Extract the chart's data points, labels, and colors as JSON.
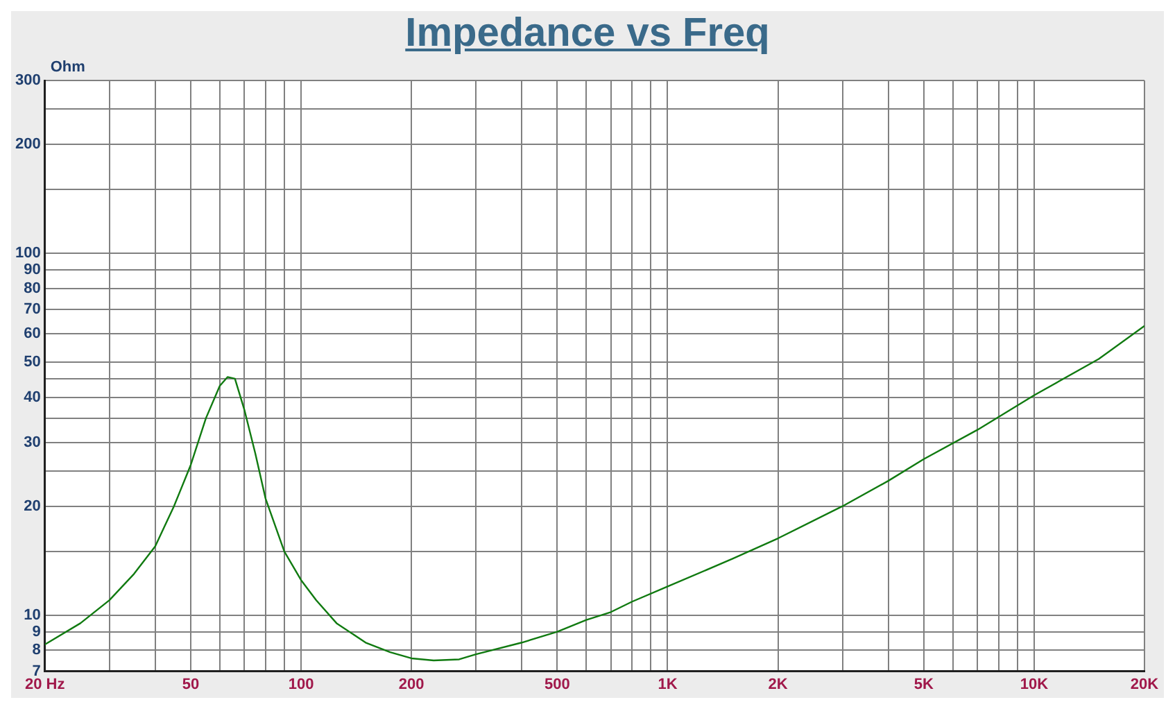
{
  "chart_data": {
    "type": "line",
    "title": "Impedance vs Freq",
    "ylabel": "Ohm",
    "log": "xy",
    "grid": true,
    "x": [
      20,
      25,
      30,
      35,
      40,
      45,
      50,
      55,
      60,
      63,
      66,
      70,
      75,
      80,
      90,
      100,
      110,
      125,
      150,
      175,
      200,
      230,
      270,
      300,
      400,
      500,
      600,
      700,
      800,
      1000,
      1500,
      2000,
      3000,
      4000,
      5000,
      7000,
      10000,
      15000,
      20000
    ],
    "series": [
      {
        "color": "#107a10",
        "values": [
          8.3,
          9.5,
          11,
          13,
          15.5,
          20,
          26,
          35,
          43,
          45.5,
          45,
          37,
          28,
          21,
          15,
          12.5,
          11,
          9.5,
          8.4,
          7.9,
          7.6,
          7.5,
          7.55,
          7.8,
          8.4,
          9,
          9.7,
          10.2,
          10.9,
          12,
          14.3,
          16.3,
          20,
          23.5,
          27,
          32.5,
          40.5,
          51,
          63
        ]
      }
    ],
    "xlim": [
      20,
      20000
    ],
    "xticks": [
      {
        "value": 20,
        "label": "20 Hz"
      },
      {
        "value": 30,
        "label": null
      },
      {
        "value": 40,
        "label": null
      },
      50,
      {
        "value": 60,
        "label": null
      },
      {
        "value": 70,
        "label": null
      },
      {
        "value": 80,
        "label": null
      },
      {
        "value": 90,
        "label": null
      },
      100,
      200,
      {
        "value": 300,
        "label": null
      },
      {
        "value": 400,
        "label": null
      },
      500,
      {
        "value": 600,
        "label": null
      },
      {
        "value": 700,
        "label": null
      },
      {
        "value": 800,
        "label": null
      },
      {
        "value": 900,
        "label": null
      },
      {
        "value": 1000,
        "label": "1K"
      },
      {
        "value": 2000,
        "label": "2K"
      },
      {
        "value": 3000,
        "label": null
      },
      {
        "value": 4000,
        "label": null
      },
      {
        "value": 5000,
        "label": "5K"
      },
      {
        "value": 6000,
        "label": null
      },
      {
        "value": 7000,
        "label": null
      },
      {
        "value": 8000,
        "label": null
      },
      {
        "value": 9000,
        "label": null
      },
      {
        "value": 10000,
        "label": "10K"
      },
      {
        "value": 20000,
        "label": "20K"
      }
    ],
    "ylim": [
      7,
      300
    ],
    "yticks": [
      7,
      8,
      9,
      10,
      {
        "value": 15,
        "label": null
      },
      20,
      {
        "value": 25,
        "label": null
      },
      30,
      {
        "value": 35,
        "label": null
      },
      40,
      {
        "value": 45,
        "label": null
      },
      50,
      60,
      70,
      80,
      90,
      100,
      {
        "value": 150,
        "label": null
      },
      200,
      {
        "value": 250,
        "label": null
      },
      300
    ]
  }
}
